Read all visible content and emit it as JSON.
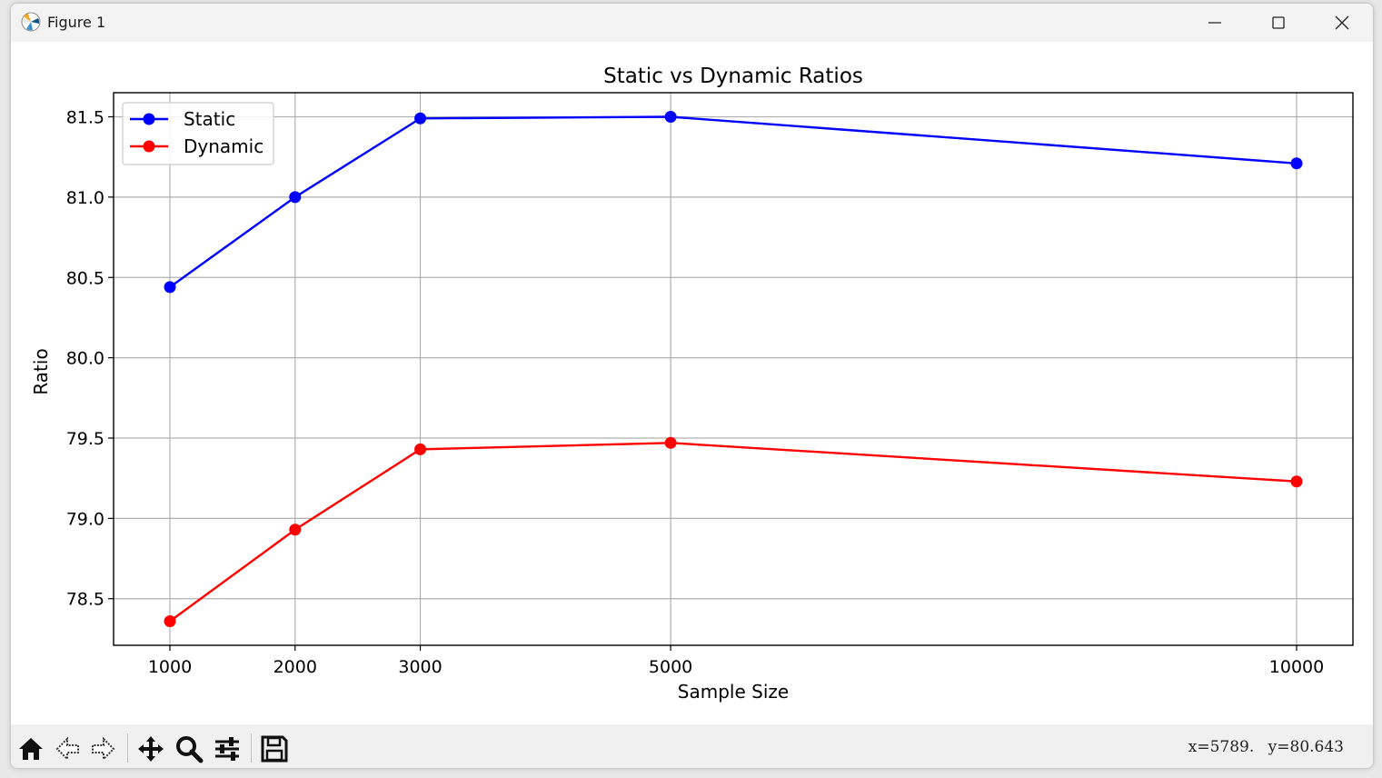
{
  "window": {
    "title": "Figure 1",
    "icon": "matplotlib-logo-icon",
    "controls": [
      "minimize-icon",
      "maximize-icon",
      "close-icon"
    ]
  },
  "toolbar": {
    "tools": [
      "home-icon",
      "back-icon",
      "forward-icon",
      "pan-icon",
      "zoom-icon",
      "configure-subplots-icon",
      "save-icon"
    ],
    "coords": "x=5789.  y=80.643"
  },
  "chart_data": {
    "type": "line",
    "title": "Static vs Dynamic Ratios",
    "xlabel": "Sample Size",
    "ylabel": "Ratio",
    "x": [
      1000,
      2000,
      3000,
      5000,
      10000
    ],
    "xticks": [
      1000,
      2000,
      3000,
      5000,
      10000
    ],
    "yticks": [
      "78.5",
      "79.0",
      "79.5",
      "80.0",
      "80.5",
      "81.0",
      "81.5"
    ],
    "xlim": [
      550,
      10450
    ],
    "ylim": [
      78.21,
      81.65
    ],
    "grid": true,
    "legend_position": "upper-left",
    "series": [
      {
        "name": "Static",
        "color": "#0000ff",
        "marker": "circle",
        "values": [
          80.44,
          81.0,
          81.49,
          81.5,
          81.21
        ]
      },
      {
        "name": "Dynamic",
        "color": "#ff0000",
        "marker": "circle",
        "values": [
          78.36,
          78.93,
          79.43,
          79.47,
          79.23
        ]
      }
    ]
  }
}
